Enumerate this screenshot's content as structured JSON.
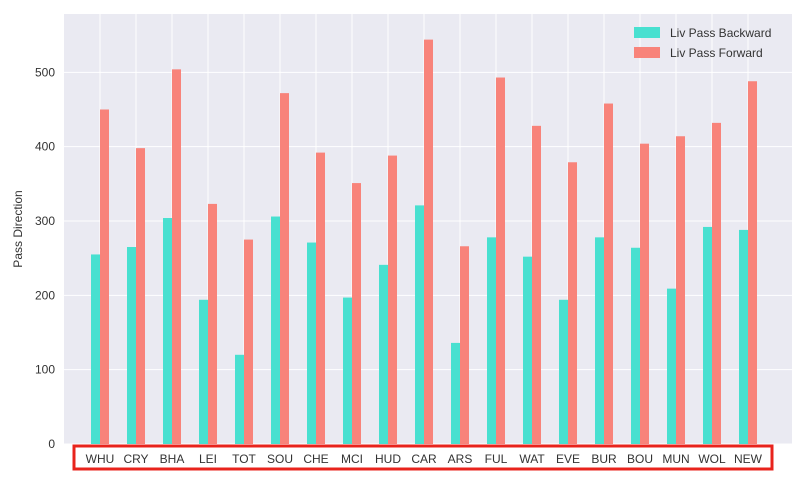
{
  "chart_data": {
    "type": "bar",
    "title": "",
    "xlabel": "",
    "ylabel": "Pass Direction",
    "ylim": [
      0,
      575
    ],
    "yticks": [
      0,
      100,
      200,
      300,
      400,
      500
    ],
    "grid": true,
    "legend_position": "top-right",
    "categories": [
      "WHU",
      "CRY",
      "BHA",
      "LEI",
      "TOT",
      "SOU",
      "CHE",
      "MCI",
      "HUD",
      "CAR",
      "ARS",
      "FUL",
      "WAT",
      "EVE",
      "BUR",
      "BOU",
      "MUN",
      "WOL",
      "NEW"
    ],
    "series": [
      {
        "name": "Liv Pass Backward",
        "color": "#48e0d0",
        "values": [
          255,
          265,
          304,
          194,
          120,
          306,
          271,
          197,
          241,
          321,
          136,
          278,
          252,
          194,
          278,
          264,
          209,
          292,
          288
        ]
      },
      {
        "name": "Liv Pass Forward",
        "color": "#f8837a",
        "values": [
          450,
          398,
          504,
          323,
          275,
          472,
          392,
          351,
          388,
          544,
          266,
          493,
          428,
          379,
          458,
          404,
          414,
          432,
          488
        ]
      }
    ],
    "highlight_color": "#e8231c",
    "plot_background": "#eaeaf2"
  }
}
